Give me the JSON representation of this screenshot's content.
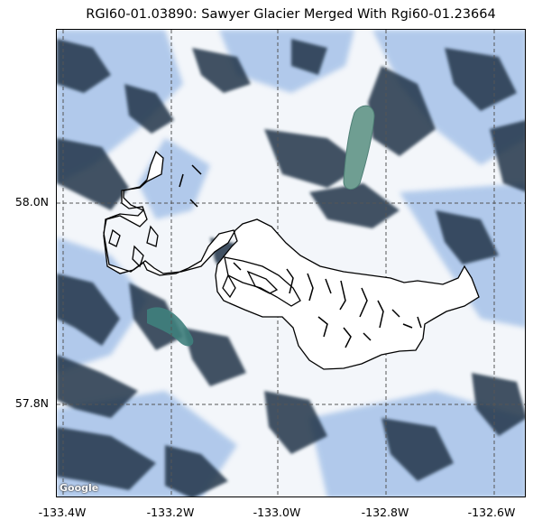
{
  "title": "RGI60-01.03890: Sawyer Glacier Merged With Rgi60-01.23664",
  "attribution": "Google",
  "axes": {
    "y_ticks": [
      "58.0N",
      "57.8N"
    ],
    "x_ticks": [
      "-133.4W",
      "-133.2W",
      "-133.0W",
      "-132.8W",
      "-132.6W"
    ]
  },
  "colors": {
    "gridline": "#555555",
    "outline": "#000000",
    "snow": "#f4f7fb",
    "ice_blue": "#5e8fd6",
    "rock": "#233445",
    "water": "#4f8f86"
  }
}
